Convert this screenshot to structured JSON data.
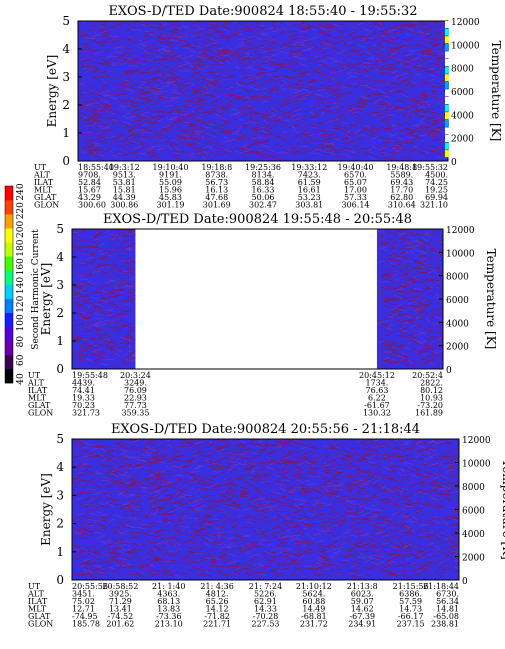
{
  "colorbar": {
    "label": "Second Harmonic Current",
    "ticks": [
      "40",
      "60",
      "80",
      "100",
      "120",
      "140",
      "160",
      "180",
      "200",
      "220",
      "240"
    ],
    "colors": [
      "#000000",
      "#3a0052",
      "#6a00a8",
      "#5500d8",
      "#1a1aff",
      "#0080ff",
      "#00d0ff",
      "#00ff80",
      "#40ff00",
      "#c0ff00",
      "#ffff00",
      "#ffa000",
      "#ff4000",
      "#ff0000"
    ]
  },
  "panel_colors": {
    "background": "#3a2fe0",
    "streak": "#8a1450",
    "speck": "#6a3ad0"
  },
  "chart_data": [
    {
      "type": "heatmap",
      "title": "EXOS-D/TED   Date:900824   18:55:40 - 19:55:32",
      "ylabel_left": "Energy [eV]",
      "ylabel_right": "Temperature [K]",
      "ylim_left": [
        0,
        5
      ],
      "yticks_left": [
        "0",
        "1",
        "2",
        "3",
        "4",
        "5"
      ],
      "ylim_right": [
        0,
        12000
      ],
      "yticks_right": [
        "0",
        "2000",
        "4000",
        "6000",
        "8000",
        "10000",
        "12000"
      ],
      "data_coverage": [
        [
          0,
          1
        ]
      ],
      "ephemeris_labels": [
        "UT",
        "ALT",
        "ILAT",
        "MLT",
        "GLAT",
        "GLON"
      ],
      "ephemeris": [
        {
          "UT": "18:55:40",
          "ALT": "9708.",
          "ILAT": "52.84",
          "MLT": "15.67",
          "GLAT": "43.29",
          "GLON": "300.60"
        },
        {
          "UT": "19:3:12",
          "ALT": "9513.",
          "ILAT": "53.81",
          "MLT": "15.81",
          "GLAT": "44.39",
          "GLON": "300.86"
        },
        {
          "UT": "19:10:40",
          "ALT": "9191.",
          "ILAT": "55.09",
          "MLT": "15.96",
          "GLAT": "45.83",
          "GLON": "301.19"
        },
        {
          "UT": "19:18:8",
          "ALT": "8738.",
          "ILAT": "56.73",
          "MLT": "16.13",
          "GLAT": "47.68",
          "GLON": "301.69"
        },
        {
          "UT": "19:25:36",
          "ALT": "8134.",
          "ILAT": "58.84",
          "MLT": "16.33",
          "GLAT": "50.06",
          "GLON": "302.47"
        },
        {
          "UT": "19:33:12",
          "ALT": "7423.",
          "ILAT": "61.59",
          "MLT": "16.61",
          "GLAT": "53.23",
          "GLON": "303.81"
        },
        {
          "UT": "19:40:40",
          "ALT": "6570.",
          "ILAT": "65.07",
          "MLT": "17.00",
          "GLAT": "57.33",
          "GLON": "306.14"
        },
        {
          "UT": "19:48:8",
          "ALT": "5589.",
          "ILAT": "69.43",
          "MLT": "17.70",
          "GLAT": "62.80",
          "GLON": "310.64"
        },
        {
          "UT": "19:55:32",
          "ALT": "4500.",
          "ILAT": "74.25",
          "MLT": "19.25",
          "GLAT": "69.94",
          "GLON": "321.10"
        }
      ]
    },
    {
      "type": "heatmap",
      "title": "EXOS-D/TED   Date:900824   19:55:48 - 20:55:48",
      "ylabel_left": "Energy [eV]",
      "ylabel_right": "Temperature [K]",
      "ylim_left": [
        0,
        5
      ],
      "yticks_left": [
        "0",
        "1",
        "2",
        "3",
        "4",
        "5"
      ],
      "ylim_right": [
        0,
        12000
      ],
      "yticks_right": [
        "0",
        "2000",
        "4000",
        "6000",
        "8000",
        "10000",
        "12000"
      ],
      "data_coverage": [
        [
          0,
          0.171
        ],
        [
          0.822,
          1
        ]
      ],
      "ephemeris_labels": [
        "UT",
        "ALT",
        "ILAT",
        "MLT",
        "GLAT",
        "GLON"
      ],
      "ephemeris": [
        {
          "UT": "19:55:48",
          "ALT": "4439.",
          "ILAT": "74.41",
          "MLT": "19.33",
          "GLAT": "70.23",
          "GLON": "321.73"
        },
        {
          "UT": "20:3:24",
          "ALT": "3249.",
          "ILAT": "76.09",
          "MLT": "22.93",
          "GLAT": "77.73",
          "GLON": "359.35"
        },
        {
          "UT": "20:45:12",
          "ALT": "1734.",
          "ILAT": "76.63",
          "MLT": "6.22",
          "GLAT": "-61.67",
          "GLON": "130.32"
        },
        {
          "UT": "20:52:4",
          "ALT": "2822.",
          "ILAT": "80.12",
          "MLT": "10.93",
          "GLAT": "-73.20",
          "GLON": "161.89"
        }
      ]
    },
    {
      "type": "heatmap",
      "title": "EXOS-D/TED   Date:900824   20:55:56 - 21:18:44",
      "ylabel_left": "Energy [eV]",
      "ylabel_right": "Temperature [K]",
      "ylim_left": [
        0,
        5
      ],
      "yticks_left": [
        "0",
        "1",
        "2",
        "3",
        "4",
        "5"
      ],
      "ylim_right": [
        0,
        12000
      ],
      "yticks_right": [
        "0",
        "2000",
        "4000",
        "6000",
        "8000",
        "10000",
        "12000"
      ],
      "data_coverage": [
        [
          0,
          1
        ]
      ],
      "ephemeris_labels": [
        "UT",
        "ALT",
        "ILAT",
        "MLT",
        "GLAT",
        "GLON"
      ],
      "ephemeris": [
        {
          "UT": "20:55:56",
          "ALT": "3451.",
          "ILAT": "75.02",
          "MLT": "12.71",
          "GLAT": "-74.95",
          "GLON": "185.78"
        },
        {
          "UT": "20:58:52",
          "ALT": "3925.",
          "ILAT": "71.29",
          "MLT": "13.41",
          "GLAT": "-74.52",
          "GLON": "201.62"
        },
        {
          "UT": "21: 1:40",
          "ALT": "4363.",
          "ILAT": "68.13",
          "MLT": "13.83",
          "GLAT": "-73.36",
          "GLON": "213.10"
        },
        {
          "UT": "21: 4:36",
          "ALT": "4812.",
          "ILAT": "65.26",
          "MLT": "14.12",
          "GLAT": "-71.82",
          "GLON": "221.71"
        },
        {
          "UT": "21: 7:24",
          "ALT": "5226.",
          "ILAT": "62.91",
          "MLT": "14.33",
          "GLAT": "-70.28",
          "GLON": "227.53"
        },
        {
          "UT": "21:10:12",
          "ALT": "5624.",
          "ILAT": "60.88",
          "MLT": "14.49",
          "GLAT": "-68.81",
          "GLON": "231.72"
        },
        {
          "UT": "21:13:8",
          "ALT": "6023.",
          "ILAT": "59.07",
          "MLT": "14.62",
          "GLAT": "-67.39",
          "GLON": "234.91"
        },
        {
          "UT": "21:15:56",
          "ALT": "6386.",
          "ILAT": "57.59",
          "MLT": "14.73",
          "GLAT": "-66.17",
          "GLON": "237.15"
        },
        {
          "UT": "21:18:44",
          "ALT": "6730.",
          "ILAT": "56.34",
          "MLT": "14.81",
          "GLAT": "-65.08",
          "GLON": "238.81"
        }
      ]
    }
  ]
}
